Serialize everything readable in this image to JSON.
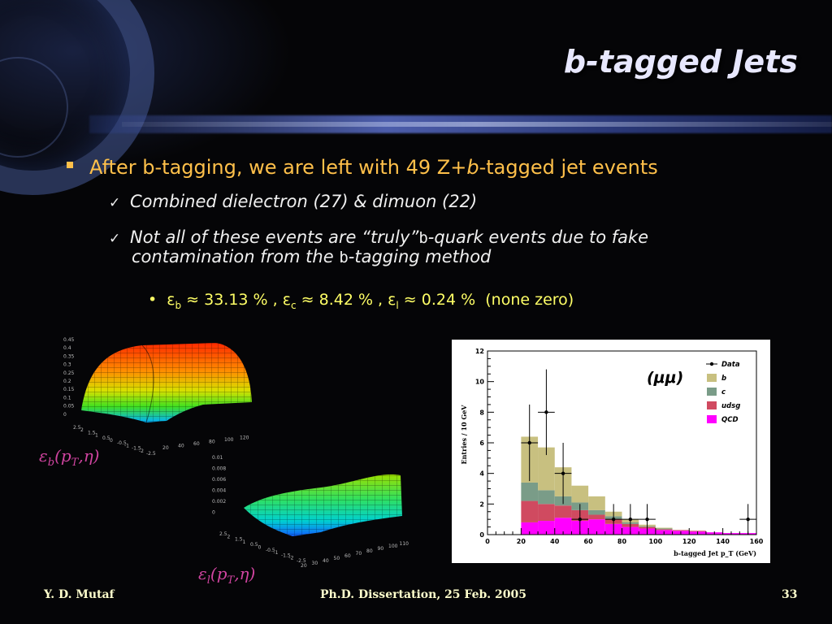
{
  "slide": {
    "title": "b-tagged Jets",
    "bullet1_pre": "After b-tagging, we are left with 49 Z+",
    "bullet1_b": "b",
    "bullet1_post": "-tagged jet events",
    "sub1": "Combined dielectron (27) & dimuon (22)",
    "sub2_a": "Not all of these events are “truly”",
    "sub2_b": "b",
    "sub2_c": "-quark events due to fake",
    "sub2_d": "contamination from the",
    "sub2_e": "b",
    "sub2_f": "-tagging method",
    "eff_eps": "ε",
    "eff_b_sub": "b",
    "eff_b_val": " ≈ 33.13 % , ",
    "eff_c_sub": "c",
    "eff_c_val": " ≈ 8.42 % , ",
    "eff_l_sub": "l",
    "eff_l_val": " ≈ 0.24 %",
    "eff_note": "(none zero)",
    "label_eb": "εb(pT,η)",
    "label_el": "εl(pT,η)",
    "surf1_axis_z": [
      "0.45",
      "0.4",
      "0.35",
      "0.3",
      "0.25",
      "0.2",
      "0.15",
      "0.1",
      "0.05",
      "0"
    ],
    "surf1_axis_x": [
      "20",
      "40",
      "60",
      "80",
      "100",
      "120"
    ],
    "surf1_axis_y": [
      "2.5",
      "2",
      "1.5",
      "1",
      "0.5",
      "0",
      "-0.5",
      "-1",
      "-1.5",
      "-2",
      "-2.5"
    ],
    "surf2_axis_z": [
      "0.01",
      "0.008",
      "0.006",
      "0.004",
      "0.002",
      "0"
    ],
    "surf2_axis_x": [
      "20",
      "30",
      "40",
      "50",
      "60",
      "70",
      "80",
      "90",
      "100",
      "110"
    ],
    "surf2_axis_y": [
      "2.5",
      "2",
      "1.5",
      "1",
      "0.5",
      "0",
      "-0.5",
      "-1",
      "-1.5",
      "-2",
      "-2.5"
    ]
  },
  "footer": {
    "author": "Y. D. Mutaf",
    "center": "Ph.D. Dissertation, 25 Feb. 2005",
    "page": "33"
  },
  "colors": {
    "title": "#e8e8ff",
    "bullet1": "#ffc04a",
    "sub": "#f0f0f0",
    "eff": "#ffff66",
    "label": "#d044a0",
    "footer": "#ffffcc",
    "hist_b": "#c8c080",
    "hist_c": "#7a9c88",
    "hist_udsg": "#d04a60",
    "hist_qcd": "#ff00ff"
  },
  "chart_data": {
    "type": "bar",
    "annotation": "(μμ)",
    "xlabel": "b-tagged Jet p_T (GeV)",
    "ylabel": "Entries / 10 GeV",
    "xlim": [
      0,
      160
    ],
    "ylim": [
      0,
      12
    ],
    "xticks": [
      "0",
      "20",
      "40",
      "60",
      "80",
      "100",
      "120",
      "140",
      "160"
    ],
    "yticks": [
      "0",
      "2",
      "4",
      "6",
      "8",
      "10",
      "12"
    ],
    "legend": [
      "Data",
      "b",
      "c",
      "udsg",
      "QCD"
    ],
    "legend_placement": "top-right",
    "bin_edges": [
      20,
      30,
      40,
      50,
      60,
      70,
      80,
      90,
      100,
      110,
      120,
      130,
      140,
      150,
      160
    ],
    "stack": [
      {
        "name": "QCD",
        "values": [
          0.8,
          0.9,
          1.1,
          0.9,
          1.0,
          0.7,
          0.5,
          0.4,
          0.3,
          0.25,
          0.2,
          0.15,
          0.1,
          0.1
        ]
      },
      {
        "name": "udsg",
        "values": [
          1.4,
          1.1,
          0.8,
          0.7,
          0.3,
          0.3,
          0.2,
          0.1,
          0.05,
          0.05,
          0.05,
          0.0,
          0.0,
          0.0
        ]
      },
      {
        "name": "c",
        "values": [
          1.2,
          0.9,
          0.6,
          0.5,
          0.3,
          0.2,
          0.1,
          0.05,
          0.05,
          0.0,
          0.0,
          0.0,
          0.0,
          0.0
        ]
      },
      {
        "name": "b",
        "values": [
          3.0,
          2.8,
          1.9,
          1.1,
          0.9,
          0.3,
          0.2,
          0.1,
          0.05,
          0.0,
          0.0,
          0.0,
          0.0,
          0.0
        ]
      }
    ],
    "data_points": [
      {
        "x": 25,
        "y": 6,
        "err": 2.5
      },
      {
        "x": 35,
        "y": 8,
        "err": 2.8
      },
      {
        "x": 45,
        "y": 4,
        "err": 2.0
      },
      {
        "x": 55,
        "y": 1,
        "err": 1.0
      },
      {
        "x": 75,
        "y": 1,
        "err": 1.0
      },
      {
        "x": 85,
        "y": 1,
        "err": 1.0
      },
      {
        "x": 95,
        "y": 1,
        "err": 1.0
      },
      {
        "x": 155,
        "y": 1,
        "err": 1.0
      }
    ]
  }
}
